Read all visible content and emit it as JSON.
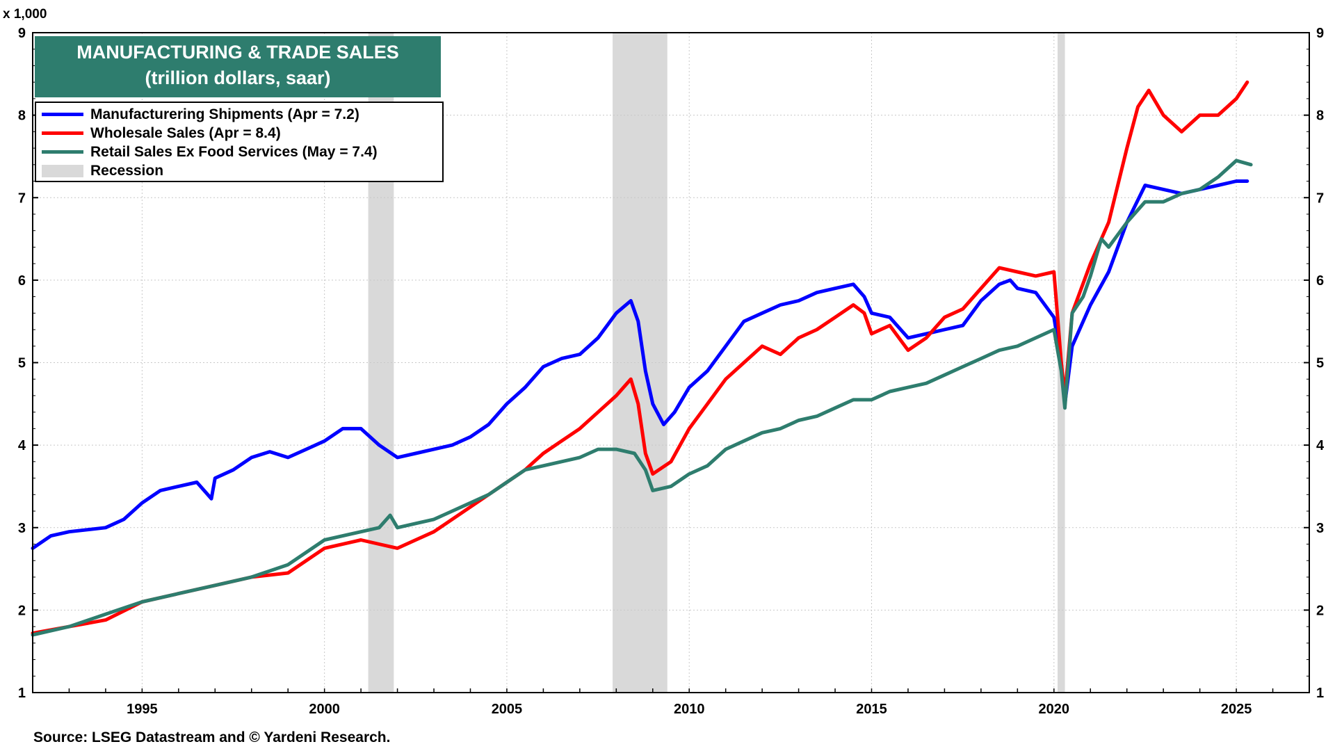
{
  "unit_label": "x 1,000",
  "source": "Source: LSEG Datastream and © Yardeni Research.",
  "colors": {
    "manufacturing": "#0000ff",
    "wholesale": "#ff0000",
    "retail": "#2e7d6e",
    "recession": "#d9d9d9",
    "title_bg": "#2e7d6e"
  },
  "chart_data": {
    "type": "line",
    "title": "MANUFACTURING & TRADE SALES",
    "subtitle": "(trillion dollars, saar)",
    "ylim": [
      1,
      9
    ],
    "xlim": [
      1992.0,
      2027.0
    ],
    "y_ticks": [
      "1",
      "2",
      "3",
      "4",
      "5",
      "6",
      "7",
      "8",
      "9"
    ],
    "x_ticks": [
      "1995",
      "2000",
      "2005",
      "2010",
      "2015",
      "2020",
      "2025"
    ],
    "grid": true,
    "legend_position": "top-left",
    "recessions": [
      [
        2001.2,
        2001.9
      ],
      [
        2007.9,
        2009.4
      ],
      [
        2020.1,
        2020.3
      ]
    ],
    "series": [
      {
        "name": "Manufacturering Shipments (Apr = 7.2)",
        "color": "#0000ff",
        "points": [
          [
            1992.0,
            2.75
          ],
          [
            1992.5,
            2.9
          ],
          [
            1993.0,
            2.95
          ],
          [
            1994.0,
            3.0
          ],
          [
            1994.5,
            3.1
          ],
          [
            1995.0,
            3.3
          ],
          [
            1995.5,
            3.45
          ],
          [
            1996.0,
            3.5
          ],
          [
            1996.5,
            3.55
          ],
          [
            1996.9,
            3.35
          ],
          [
            1997.0,
            3.6
          ],
          [
            1997.5,
            3.7
          ],
          [
            1998.0,
            3.85
          ],
          [
            1998.5,
            3.92
          ],
          [
            1999.0,
            3.85
          ],
          [
            1999.5,
            3.95
          ],
          [
            2000.0,
            4.05
          ],
          [
            2000.5,
            4.2
          ],
          [
            2001.0,
            4.2
          ],
          [
            2001.5,
            4.0
          ],
          [
            2002.0,
            3.85
          ],
          [
            2002.5,
            3.9
          ],
          [
            2003.0,
            3.95
          ],
          [
            2003.5,
            4.0
          ],
          [
            2004.0,
            4.1
          ],
          [
            2004.5,
            4.25
          ],
          [
            2005.0,
            4.5
          ],
          [
            2005.5,
            4.7
          ],
          [
            2006.0,
            4.95
          ],
          [
            2006.5,
            5.05
          ],
          [
            2007.0,
            5.1
          ],
          [
            2007.5,
            5.3
          ],
          [
            2008.0,
            5.6
          ],
          [
            2008.4,
            5.75
          ],
          [
            2008.6,
            5.5
          ],
          [
            2008.8,
            4.9
          ],
          [
            2009.0,
            4.5
          ],
          [
            2009.3,
            4.25
          ],
          [
            2009.6,
            4.4
          ],
          [
            2010.0,
            4.7
          ],
          [
            2010.5,
            4.9
          ],
          [
            2011.0,
            5.2
          ],
          [
            2011.5,
            5.5
          ],
          [
            2012.0,
            5.6
          ],
          [
            2012.5,
            5.7
          ],
          [
            2013.0,
            5.75
          ],
          [
            2013.5,
            5.85
          ],
          [
            2014.0,
            5.9
          ],
          [
            2014.5,
            5.95
          ],
          [
            2014.8,
            5.8
          ],
          [
            2015.0,
            5.6
          ],
          [
            2015.5,
            5.55
          ],
          [
            2016.0,
            5.3
          ],
          [
            2016.5,
            5.35
          ],
          [
            2017.0,
            5.4
          ],
          [
            2017.5,
            5.45
          ],
          [
            2018.0,
            5.75
          ],
          [
            2018.5,
            5.95
          ],
          [
            2018.8,
            6.0
          ],
          [
            2019.0,
            5.9
          ],
          [
            2019.5,
            5.85
          ],
          [
            2020.0,
            5.55
          ],
          [
            2020.2,
            5.0
          ],
          [
            2020.3,
            4.5
          ],
          [
            2020.5,
            5.2
          ],
          [
            2021.0,
            5.7
          ],
          [
            2021.5,
            6.1
          ],
          [
            2022.0,
            6.7
          ],
          [
            2022.5,
            7.15
          ],
          [
            2023.0,
            7.1
          ],
          [
            2023.5,
            7.05
          ],
          [
            2024.0,
            7.1
          ],
          [
            2024.5,
            7.15
          ],
          [
            2025.0,
            7.2
          ],
          [
            2025.3,
            7.2
          ]
        ]
      },
      {
        "name": "Wholesale Sales (Apr = 8.4)",
        "color": "#ff0000",
        "points": [
          [
            1992.0,
            1.72
          ],
          [
            1993.0,
            1.8
          ],
          [
            1994.0,
            1.88
          ],
          [
            1995.0,
            2.1
          ],
          [
            1996.0,
            2.2
          ],
          [
            1997.0,
            2.3
          ],
          [
            1998.0,
            2.4
          ],
          [
            1999.0,
            2.45
          ],
          [
            2000.0,
            2.75
          ],
          [
            2001.0,
            2.85
          ],
          [
            2001.5,
            2.8
          ],
          [
            2002.0,
            2.75
          ],
          [
            2002.5,
            2.85
          ],
          [
            2003.0,
            2.95
          ],
          [
            2004.0,
            3.25
          ],
          [
            2004.5,
            3.4
          ],
          [
            2005.0,
            3.55
          ],
          [
            2005.5,
            3.7
          ],
          [
            2006.0,
            3.9
          ],
          [
            2006.5,
            4.05
          ],
          [
            2007.0,
            4.2
          ],
          [
            2007.5,
            4.4
          ],
          [
            2008.0,
            4.6
          ],
          [
            2008.4,
            4.8
          ],
          [
            2008.6,
            4.5
          ],
          [
            2008.8,
            3.9
          ],
          [
            2009.0,
            3.65
          ],
          [
            2009.5,
            3.8
          ],
          [
            2010.0,
            4.2
          ],
          [
            2010.5,
            4.5
          ],
          [
            2011.0,
            4.8
          ],
          [
            2011.5,
            5.0
          ],
          [
            2012.0,
            5.2
          ],
          [
            2012.5,
            5.1
          ],
          [
            2013.0,
            5.3
          ],
          [
            2013.5,
            5.4
          ],
          [
            2014.0,
            5.55
          ],
          [
            2014.5,
            5.7
          ],
          [
            2014.8,
            5.6
          ],
          [
            2015.0,
            5.35
          ],
          [
            2015.5,
            5.45
          ],
          [
            2016.0,
            5.15
          ],
          [
            2016.5,
            5.3
          ],
          [
            2017.0,
            5.55
          ],
          [
            2017.5,
            5.65
          ],
          [
            2018.0,
            5.9
          ],
          [
            2018.5,
            6.15
          ],
          [
            2019.0,
            6.1
          ],
          [
            2019.5,
            6.05
          ],
          [
            2020.0,
            6.1
          ],
          [
            2020.2,
            5.0
          ],
          [
            2020.3,
            4.6
          ],
          [
            2020.5,
            5.6
          ],
          [
            2021.0,
            6.2
          ],
          [
            2021.5,
            6.7
          ],
          [
            2022.0,
            7.6
          ],
          [
            2022.3,
            8.1
          ],
          [
            2022.6,
            8.3
          ],
          [
            2023.0,
            8.0
          ],
          [
            2023.5,
            7.8
          ],
          [
            2024.0,
            8.0
          ],
          [
            2024.5,
            8.0
          ],
          [
            2025.0,
            8.2
          ],
          [
            2025.3,
            8.4
          ]
        ]
      },
      {
        "name": "Retail Sales Ex Food Services (May = 7.4)",
        "color": "#2e7d6e",
        "points": [
          [
            1992.0,
            1.7
          ],
          [
            1993.0,
            1.8
          ],
          [
            1994.0,
            1.95
          ],
          [
            1995.0,
            2.1
          ],
          [
            1996.0,
            2.2
          ],
          [
            1997.0,
            2.3
          ],
          [
            1998.0,
            2.4
          ],
          [
            1999.0,
            2.55
          ],
          [
            2000.0,
            2.85
          ],
          [
            2001.0,
            2.95
          ],
          [
            2001.5,
            3.0
          ],
          [
            2001.8,
            3.15
          ],
          [
            2002.0,
            3.0
          ],
          [
            2002.5,
            3.05
          ],
          [
            2003.0,
            3.1
          ],
          [
            2004.0,
            3.3
          ],
          [
            2004.5,
            3.4
          ],
          [
            2005.0,
            3.55
          ],
          [
            2005.5,
            3.7
          ],
          [
            2006.0,
            3.75
          ],
          [
            2007.0,
            3.85
          ],
          [
            2007.5,
            3.95
          ],
          [
            2008.0,
            3.95
          ],
          [
            2008.5,
            3.9
          ],
          [
            2008.8,
            3.7
          ],
          [
            2009.0,
            3.45
          ],
          [
            2009.5,
            3.5
          ],
          [
            2010.0,
            3.65
          ],
          [
            2010.5,
            3.75
          ],
          [
            2011.0,
            3.95
          ],
          [
            2011.5,
            4.05
          ],
          [
            2012.0,
            4.15
          ],
          [
            2012.5,
            4.2
          ],
          [
            2013.0,
            4.3
          ],
          [
            2013.5,
            4.35
          ],
          [
            2014.0,
            4.45
          ],
          [
            2014.5,
            4.55
          ],
          [
            2015.0,
            4.55
          ],
          [
            2015.5,
            4.65
          ],
          [
            2016.0,
            4.7
          ],
          [
            2016.5,
            4.75
          ],
          [
            2017.0,
            4.85
          ],
          [
            2017.5,
            4.95
          ],
          [
            2018.0,
            5.05
          ],
          [
            2018.5,
            5.15
          ],
          [
            2019.0,
            5.2
          ],
          [
            2019.5,
            5.3
          ],
          [
            2020.0,
            5.4
          ],
          [
            2020.2,
            4.9
          ],
          [
            2020.3,
            4.45
          ],
          [
            2020.5,
            5.6
          ],
          [
            2020.8,
            5.8
          ],
          [
            2021.0,
            6.05
          ],
          [
            2021.3,
            6.5
          ],
          [
            2021.5,
            6.4
          ],
          [
            2022.0,
            6.7
          ],
          [
            2022.5,
            6.95
          ],
          [
            2023.0,
            6.95
          ],
          [
            2023.5,
            7.05
          ],
          [
            2024.0,
            7.1
          ],
          [
            2024.5,
            7.25
          ],
          [
            2025.0,
            7.45
          ],
          [
            2025.4,
            7.4
          ]
        ]
      }
    ]
  },
  "legend": [
    {
      "label": "Manufacturering Shipments (Apr = 7.2)",
      "key": "manufacturing"
    },
    {
      "label": "Wholesale Sales (Apr = 8.4)",
      "key": "wholesale"
    },
    {
      "label": "Retail Sales Ex Food Services (May = 7.4)",
      "key": "retail"
    },
    {
      "label": "Recession",
      "key": "recession"
    }
  ]
}
